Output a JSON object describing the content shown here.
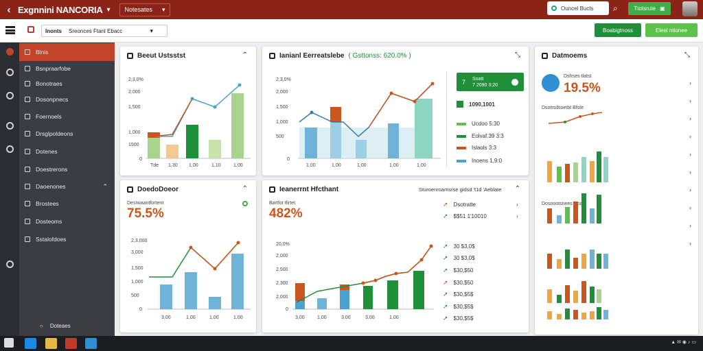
{
  "topbar": {
    "title": "Exgnnini NANCORIA",
    "dropdown": "Notesates",
    "search": "Ouncel Bucts",
    "green_button": "Ttotsrute"
  },
  "subbar": {
    "label": "Inonts",
    "field": "Sreonces Ftanl Ebacc",
    "btn1": "Boabigtnoss",
    "btn2": "Eleel ntionee"
  },
  "sidebar": {
    "items": [
      "Blnis",
      "Bsnpraarfobe",
      "Bonotraes",
      "Dosonpnecs",
      "Foernoels",
      "Drsglpoldeons",
      "Dotenes",
      "Doestrerons",
      "Daoenones",
      "Brostees",
      "Dosteoms",
      "Sstalofdoes"
    ],
    "footer": "Doteaes"
  },
  "cards": {
    "c1": {
      "title": "Beeut Ustsstst",
      "yticks": [
        "2,3,0%",
        "2,000",
        "1,500",
        "1,000",
        "1500",
        "0"
      ],
      "xticks": [
        "Tde",
        "1,30",
        "1,00",
        "1,10",
        "1,00"
      ]
    },
    "c2": {
      "title": "Ianianl Eerreatslebe",
      "subtitle": "( Gsttonss: 620.0% )",
      "yticks": [
        "2,3,0%",
        "2,000",
        "1,500",
        "1,000",
        "500",
        "0"
      ],
      "xticks": [
        "1,00",
        "1,00",
        "1,00",
        "1,00",
        "1,00"
      ],
      "kpi": "Soatt",
      "kpi_sub": "7 2090 3:20",
      "leg_head": "1090,1001",
      "legend": [
        "Ucdoo 5:30",
        "Eolvaf.39 3:3",
        "Islaols 3:3",
        "Inoens 1,9:0"
      ]
    },
    "c3": {
      "title": "Datmoems",
      "metric_label": "Dsfrses tlatst",
      "metric": "19.5%",
      "sub1": "Dsotrsdsoetbt Bfste",
      "sub2": "Dosoootsnees Hoats"
    },
    "c4": {
      "title": "DoedoDoeor",
      "metric_label": "Desrwaantfortent",
      "metric": "75.5%",
      "yticks": [
        "2,3,000",
        "3,000",
        "1,500",
        "1,000",
        "500",
        "0"
      ],
      "xticks": [
        "3,00",
        "1,00",
        "1,00",
        "1,00",
        "1,00"
      ]
    },
    "c5": {
      "title": "Ieanerrnt Hfcthant",
      "right_label": "Sturoenroamsrse gidsd 't1d 'Aeblate",
      "metric_label": "Bartfot tfirtet",
      "metric": "482%",
      "list1": [
        "Dsotratte",
        "$$51 1'10010"
      ],
      "yticks": [
        "20,0%",
        "2,000",
        "2,500",
        "2,300",
        "2,000",
        "0"
      ],
      "xticks": [
        "3,00",
        "1,00",
        "3,00",
        "3,00",
        "1,00"
      ],
      "list2": [
        "30 $3,0$",
        "30 $3,0$",
        "$30,$50",
        "$30,$50",
        "$30,$5$",
        "$30,$5$",
        "$30,$5$"
      ]
    }
  },
  "colors": {
    "red": "#8b2416",
    "orange": "#c8561e",
    "green": "#1f8f3a",
    "lightgreen": "#a9d48e",
    "blue": "#6fb3d8",
    "teal": "#8fd3c1"
  }
}
